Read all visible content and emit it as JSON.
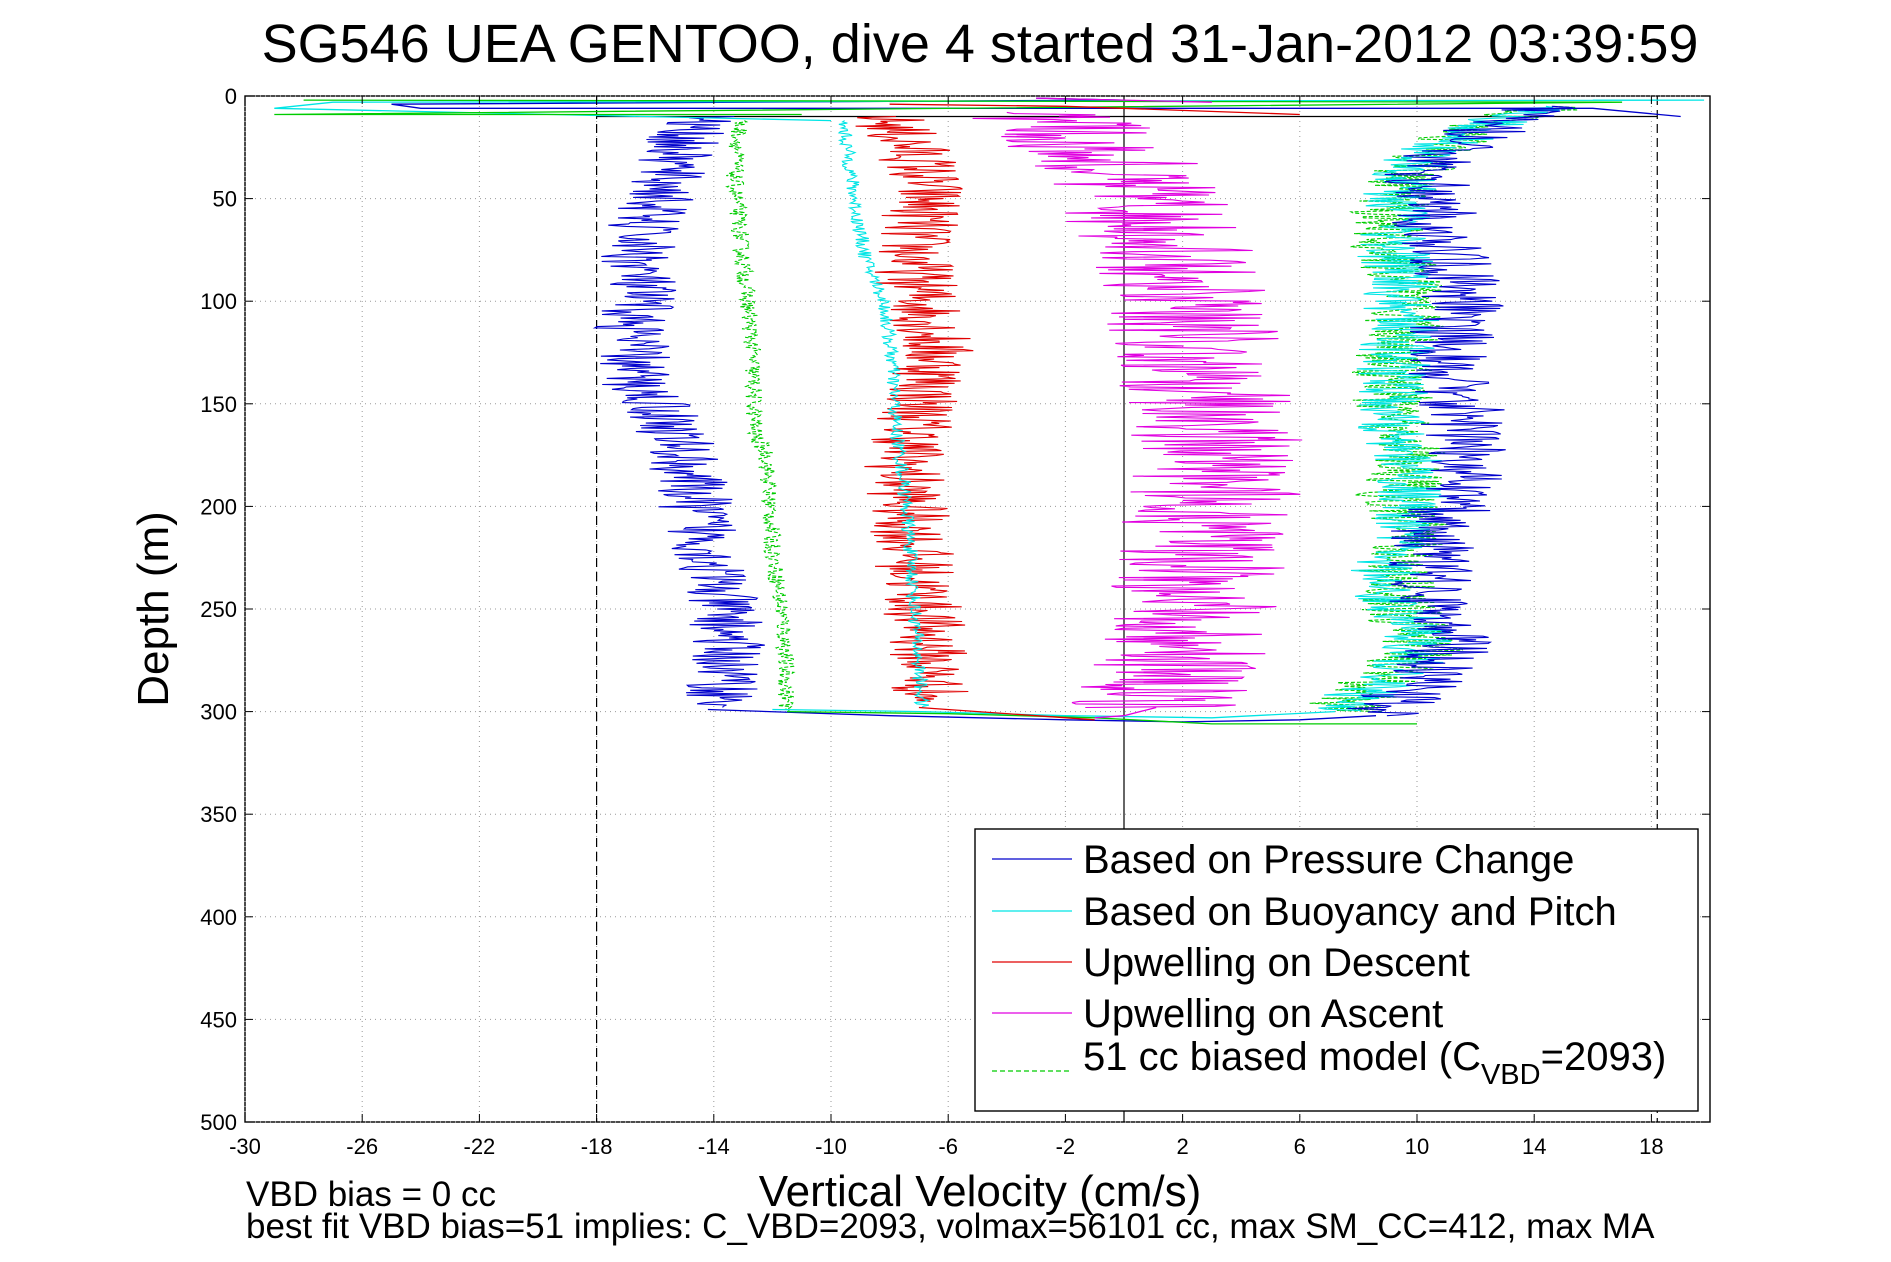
{
  "chart_data": {
    "type": "line",
    "title": "SG546 UEA GENTOO, dive 4 started 31-Jan-2012 03:39:59",
    "xlabel": "Vertical Velocity (cm/s)",
    "ylabel": "Depth (m)",
    "xlim": [
      -30,
      20
    ],
    "ylim": [
      500,
      0
    ],
    "y_reversed": true,
    "grid": true,
    "xticks": [
      -30,
      -26,
      -22,
      -18,
      -14,
      -10,
      -6,
      -2,
      2,
      6,
      10,
      14,
      18
    ],
    "yticks": [
      0,
      50,
      100,
      150,
      200,
      250,
      300,
      350,
      400,
      450,
      500
    ],
    "reference_lines": {
      "vertical_solid": [
        0
      ],
      "vertical_dashed": [
        -18,
        18.2
      ],
      "horizontal_solid": [
        10
      ]
    },
    "legend_position": "bottom-right",
    "colors": {
      "pressure": "#0000cc",
      "buoyancy": "#00e5e5",
      "upw_descent": "#e00000",
      "upw_ascent": "#e000e0",
      "model": "#00cc00"
    },
    "series": [
      {
        "key": "pressure",
        "name": "Based on Pressure Change",
        "segments": [
          {
            "jitter": 1.3,
            "points": [
              [
                -14.4,
                10
              ],
              [
                -15,
                20
              ],
              [
                -15.4,
                30
              ],
              [
                -15.8,
                50
              ],
              [
                -16.4,
                60
              ],
              [
                -16.6,
                80
              ],
              [
                -16.5,
                100
              ],
              [
                -16.8,
                110
              ],
              [
                -16.7,
                140
              ],
              [
                -15.9,
                150
              ],
              [
                -15.2,
                170
              ],
              [
                -14.8,
                190
              ],
              [
                -14.2,
                220
              ],
              [
                -13.9,
                240
              ],
              [
                -13.5,
                260
              ],
              [
                -13.6,
                280
              ],
              [
                -13.7,
                298
              ]
            ]
          },
          {
            "jitter": 1.5,
            "points": [
              [
                8.6,
                302
              ],
              [
                9.4,
                295
              ],
              [
                10.5,
                280
              ],
              [
                11.3,
                265
              ],
              [
                10.6,
                255
              ],
              [
                10.4,
                235
              ],
              [
                10.5,
                215
              ],
              [
                11.3,
                195
              ],
              [
                11.6,
                170
              ],
              [
                11.5,
                150
              ],
              [
                11,
                140
              ],
              [
                11.1,
                120
              ],
              [
                11.5,
                100
              ],
              [
                11.2,
                80
              ],
              [
                10.6,
                60
              ],
              [
                10.3,
                40
              ],
              [
                11.1,
                25
              ],
              [
                12.6,
                15
              ],
              [
                14.6,
                5
              ]
            ]
          }
        ]
      },
      {
        "key": "buoyancy",
        "name": "Based on Buoyancy and Pitch",
        "segments": [
          {
            "jitter": 0.25,
            "points": [
              [
                -9.6,
                12
              ],
              [
                -9.4,
                30
              ],
              [
                -9.1,
                60
              ],
              [
                -8.8,
                80
              ],
              [
                -8.2,
                100
              ],
              [
                -7.9,
                130
              ],
              [
                -7.8,
                160
              ],
              [
                -7.5,
                190
              ],
              [
                -7.3,
                220
              ],
              [
                -7.1,
                260
              ],
              [
                -6.9,
                298
              ]
            ]
          },
          {
            "jitter": 1.3,
            "points": [
              [
                7.2,
                300
              ],
              [
                8,
                293
              ],
              [
                8.9,
                285
              ],
              [
                10.1,
                270
              ],
              [
                9.7,
                255
              ],
              [
                9.1,
                245
              ],
              [
                8.9,
                230
              ],
              [
                9.5,
                210
              ],
              [
                9.9,
                200
              ],
              [
                9.7,
                180
              ],
              [
                9.4,
                170
              ],
              [
                9.1,
                150
              ],
              [
                9.2,
                130
              ],
              [
                9.5,
                110
              ],
              [
                9.4,
                90
              ],
              [
                9.1,
                70
              ],
              [
                9.3,
                50
              ],
              [
                10.1,
                30
              ],
              [
                12.3,
                15
              ],
              [
                14.4,
                5
              ]
            ]
          }
        ]
      },
      {
        "key": "upw_descent",
        "name": "Upwelling on Descent",
        "segments": [
          {
            "jitter": 1.4,
            "points": [
              [
                -8.2,
                10
              ],
              [
                -7,
                30
              ],
              [
                -6.7,
                50
              ],
              [
                -7.2,
                70
              ],
              [
                -7.1,
                90
              ],
              [
                -6.6,
                110
              ],
              [
                -6.4,
                130
              ],
              [
                -6.9,
                150
              ],
              [
                -7.5,
                180
              ],
              [
                -7.3,
                210
              ],
              [
                -7,
                240
              ],
              [
                -6.7,
                265
              ],
              [
                -6.6,
                295
              ]
            ]
          }
        ]
      },
      {
        "key": "upw_ascent",
        "name": "Upwelling on Ascent",
        "segments": [
          {
            "jitter": 3,
            "points": [
              [
                1.1,
                298
              ],
              [
                1.4,
                285
              ],
              [
                1.9,
                270
              ],
              [
                2.3,
                250
              ],
              [
                2.6,
                230
              ],
              [
                2.9,
                210
              ],
              [
                3.1,
                190
              ],
              [
                3.3,
                170
              ],
              [
                3,
                150
              ],
              [
                2.6,
                130
              ],
              [
                2.2,
                110
              ],
              [
                1.9,
                90
              ],
              [
                1.3,
                70
              ],
              [
                0.5,
                50
              ],
              [
                -0.4,
                30
              ],
              [
                -2,
                15
              ],
              [
                -4,
                8
              ]
            ]
          }
        ]
      },
      {
        "key": "model",
        "name": "51 cc biased model (C_VBD=2093)",
        "dashed": true,
        "segments": [
          {
            "jitter": 0.3,
            "points": [
              [
                -13.1,
                12
              ],
              [
                -13.3,
                40
              ],
              [
                -13,
                80
              ],
              [
                -12.7,
                120
              ],
              [
                -12.6,
                165
              ],
              [
                -12.2,
                175
              ],
              [
                -12,
                220
              ],
              [
                -11.6,
                260
              ],
              [
                -11.5,
                300
              ]
            ]
          },
          {
            "jitter": 1.4,
            "points": [
              [
                7.4,
                300
              ],
              [
                8.2,
                290
              ],
              [
                9.1,
                280
              ],
              [
                10.3,
                270
              ],
              [
                9.7,
                255
              ],
              [
                9.2,
                245
              ],
              [
                9.5,
                225
              ],
              [
                9.9,
                210
              ],
              [
                9.2,
                195
              ],
              [
                9.9,
                180
              ],
              [
                9.6,
                170
              ],
              [
                9.2,
                150
              ],
              [
                9.1,
                130
              ],
              [
                9.6,
                110
              ],
              [
                9.5,
                90
              ],
              [
                9,
                70
              ],
              [
                9.2,
                50
              ],
              [
                10.2,
                30
              ],
              [
                12.1,
                15
              ],
              [
                14.6,
                5
              ]
            ]
          }
        ]
      }
    ],
    "surface_spikes": [
      {
        "key": "pressure",
        "points": [
          [
            -3,
            1
          ],
          [
            0,
            2
          ],
          [
            -25,
            4
          ],
          [
            -24,
            6
          ],
          [
            16,
            6
          ],
          [
            19,
            10
          ]
        ]
      },
      {
        "key": "buoyancy",
        "points": [
          [
            16,
            2
          ],
          [
            19.8,
            2
          ],
          [
            -27,
            3
          ],
          [
            -29,
            6
          ],
          [
            -10,
            12
          ]
        ]
      },
      {
        "key": "model",
        "points": [
          [
            -28,
            2
          ],
          [
            17,
            3
          ],
          [
            -29,
            9
          ],
          [
            -11,
            9
          ]
        ]
      },
      {
        "key": "upw_descent",
        "points": [
          [
            -8,
            4
          ],
          [
            -2,
            5
          ],
          [
            6,
            9
          ]
        ]
      },
      {
        "key": "upw_ascent",
        "points": [
          [
            -3,
            1
          ],
          [
            3,
            3
          ]
        ]
      }
    ],
    "bottom_transitions": [
      {
        "key": "pressure",
        "points": [
          [
            -14.2,
            299
          ],
          [
            -8,
            302
          ],
          [
            -2,
            304
          ],
          [
            2,
            305
          ],
          [
            6,
            304
          ],
          [
            8.6,
            302
          ]
        ]
      },
      {
        "key": "buoyancy",
        "points": [
          [
            -12,
            299
          ],
          [
            -6.9,
            300
          ],
          [
            -2,
            302
          ],
          [
            3,
            303
          ],
          [
            7.2,
            300
          ]
        ]
      },
      {
        "key": "model",
        "points": [
          [
            -11.5,
            300
          ],
          [
            -6,
            301
          ],
          [
            -1,
            303
          ],
          [
            3,
            306
          ],
          [
            10,
            306
          ]
        ]
      },
      {
        "key": "upw_descent",
        "points": [
          [
            -7,
            298
          ],
          [
            -3,
            302
          ],
          [
            -1,
            304
          ]
        ]
      },
      {
        "key": "upw_ascent",
        "points": [
          [
            -1,
            303
          ],
          [
            0,
            302
          ],
          [
            1.1,
            298
          ]
        ]
      }
    ]
  },
  "legend": {
    "entries": [
      {
        "key": "pressure",
        "label": "Based on Pressure Change"
      },
      {
        "key": "buoyancy",
        "label": "Based on Buoyancy and Pitch"
      },
      {
        "key": "upw_descent",
        "label": "Upwelling on Descent"
      },
      {
        "key": "upw_ascent",
        "label": "Upwelling on Ascent"
      },
      {
        "key": "model",
        "label_pre": "51 cc biased model (C",
        "label_sub": "VBD",
        "label_post": "=2093)"
      }
    ]
  },
  "notes": {
    "line1": "VBD bias = 0 cc",
    "line2": "best fit VBD bias=51 implies: C_VBD=2093, volmax=56101 cc, max SM_CC=412, max MA"
  }
}
